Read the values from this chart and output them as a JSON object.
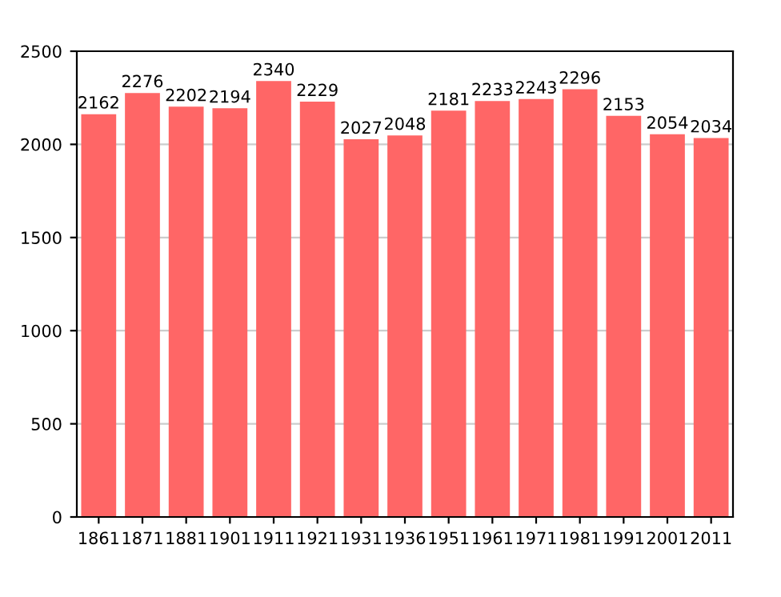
{
  "chart_data": {
    "type": "bar",
    "categories": [
      "1861",
      "1871",
      "1881",
      "1901",
      "1911",
      "1921",
      "1931",
      "1936",
      "1951",
      "1961",
      "1971",
      "1981",
      "1991",
      "2001",
      "2011"
    ],
    "values": [
      2162,
      2276,
      2202,
      2194,
      2340,
      2229,
      2027,
      2048,
      2181,
      2233,
      2243,
      2296,
      2153,
      2054,
      2034
    ],
    "color": "#ff6666",
    "ylim": [
      0,
      2500
    ],
    "yticks": [
      0,
      500,
      1000,
      1500,
      2000,
      2500
    ],
    "grid": "y",
    "data_labels": true
  }
}
